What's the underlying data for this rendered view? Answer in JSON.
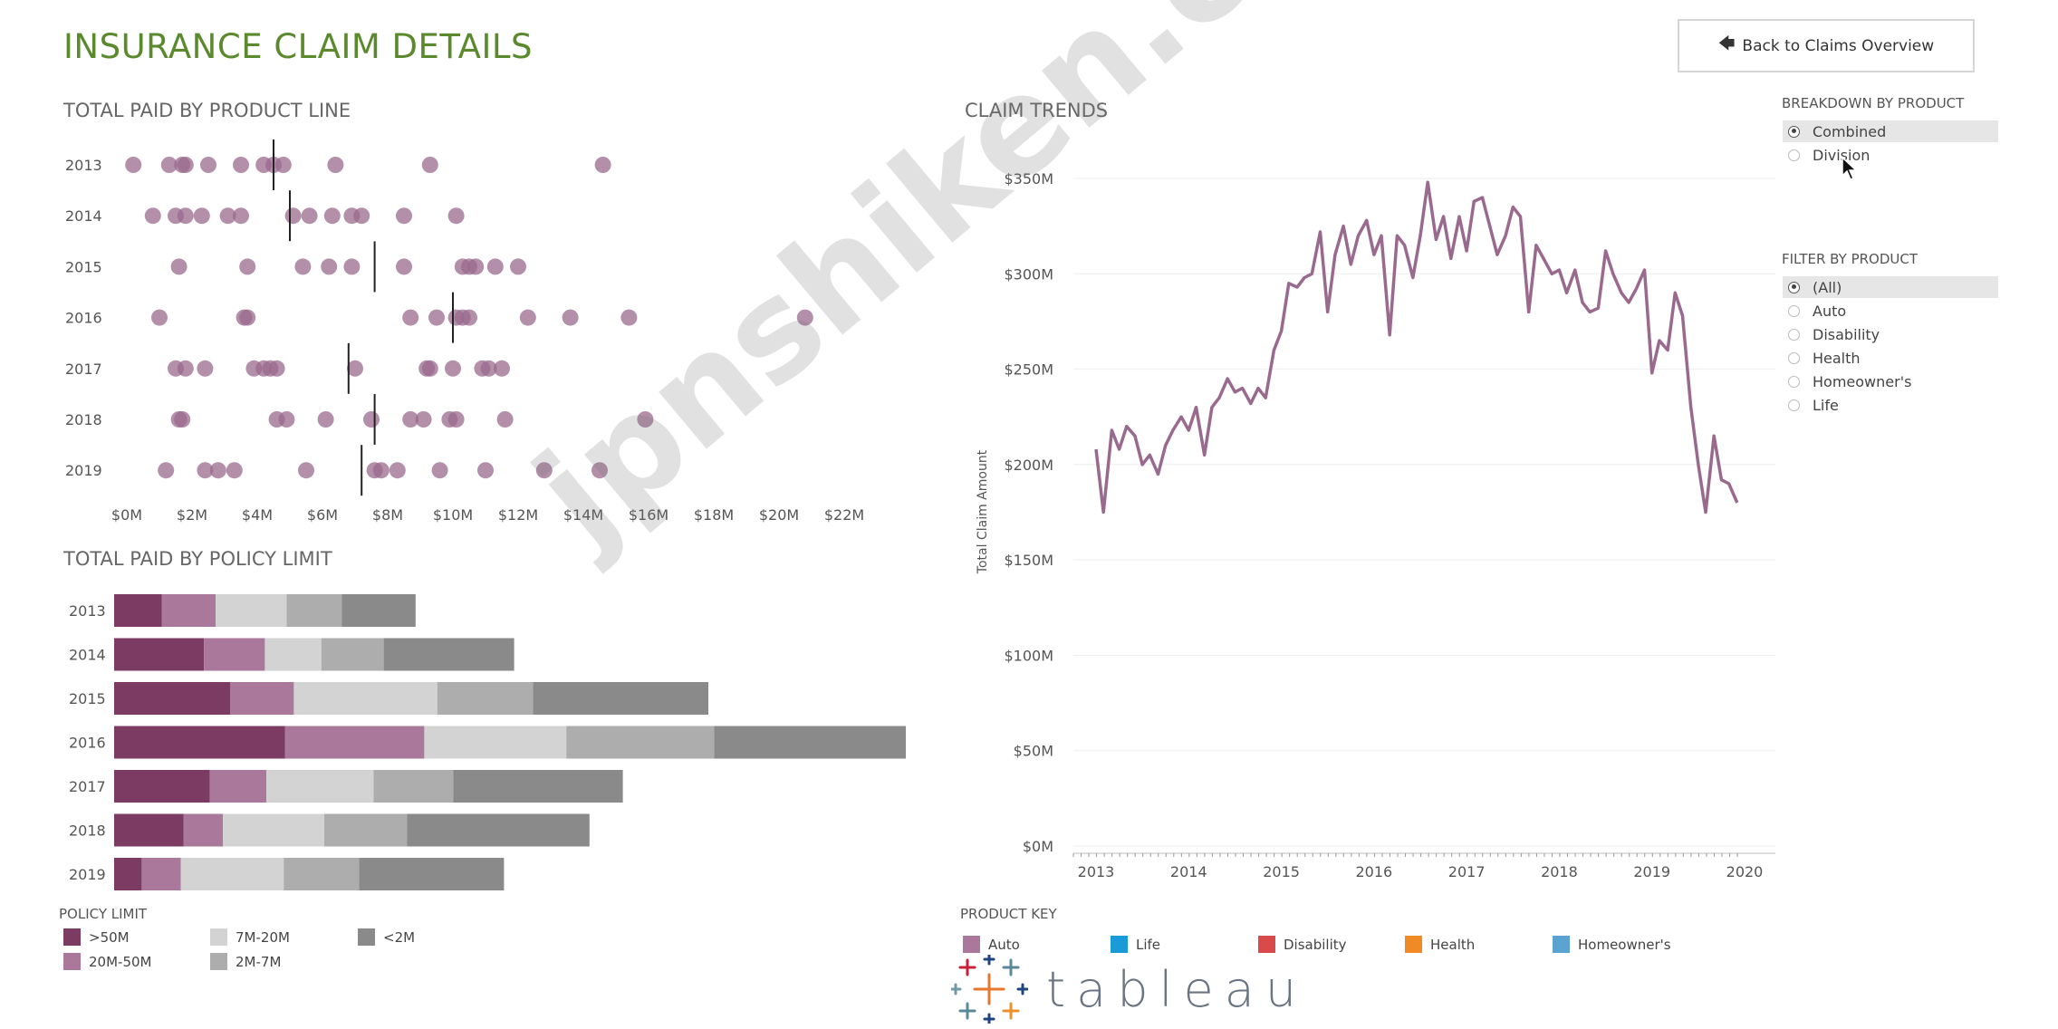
{
  "header": {
    "title": "INSURANCE CLAIM DETAILS",
    "back_button_label": "Back to Claims Overview",
    "back_icon": "arrow-left-icon"
  },
  "product_line_chart": {
    "title": "TOTAL PAID BY PRODUCT LINE",
    "chart_data": {
      "type": "scatter",
      "title": "TOTAL PAID BY PRODUCT LINE",
      "categories": [
        "2013",
        "2014",
        "2015",
        "2016",
        "2017",
        "2018",
        "2019"
      ],
      "x_ticks": [
        "$0M",
        "$2M",
        "$4M",
        "$6M",
        "$8M",
        "$10M",
        "$12M",
        "$14M",
        "$16M",
        "$18M",
        "$20M",
        "$22M"
      ],
      "xlim": [
        0,
        22
      ],
      "point_color": "#9a6a8e",
      "points_by_year": [
        [
          0.2,
          1.3,
          1.7,
          1.8,
          2.5,
          3.5,
          4.2,
          4.5,
          4.8,
          6.4,
          9.3,
          14.6
        ],
        [
          0.8,
          1.5,
          1.8,
          2.3,
          3.1,
          3.5,
          5.1,
          5.6,
          6.3,
          6.9,
          7.2,
          8.5,
          10.1
        ],
        [
          1.6,
          3.7,
          5.4,
          6.2,
          6.9,
          8.5,
          10.3,
          10.5,
          10.7,
          11.3,
          12.0
        ],
        [
          1.0,
          3.6,
          3.7,
          8.7,
          9.5,
          10.1,
          10.3,
          10.5,
          12.3,
          13.6,
          15.4,
          20.8
        ],
        [
          1.5,
          1.8,
          2.4,
          3.9,
          4.2,
          4.4,
          4.6,
          7.0,
          9.2,
          9.3,
          10.0,
          10.9,
          11.1,
          11.5
        ],
        [
          1.6,
          1.7,
          4.6,
          4.9,
          6.1,
          7.5,
          8.7,
          9.1,
          9.9,
          10.1,
          11.6,
          15.9
        ],
        [
          1.2,
          2.4,
          2.8,
          3.3,
          5.5,
          7.6,
          7.8,
          8.3,
          9.6,
          11.0,
          12.8,
          14.5
        ]
      ],
      "reference_lines": [
        4.5,
        5.0,
        7.6,
        10.0,
        6.8,
        7.6,
        7.2
      ]
    }
  },
  "policy_limit_chart": {
    "title": "TOTAL PAID BY POLICY LIMIT",
    "chart_data": {
      "type": "bar",
      "title": "TOTAL PAID BY POLICY LIMIT",
      "orientation": "horizontal",
      "stacked": true,
      "categories": [
        "2013",
        "2014",
        "2015",
        "2016",
        "2017",
        "2018",
        "2019"
      ],
      "series": [
        {
          "name": ">50M",
          "color": "#7b3b63",
          "values": [
            33,
            62,
            80,
            118,
            66,
            48,
            19
          ]
        },
        {
          "name": "20M-50M",
          "color": "#a9789a",
          "values": [
            37,
            42,
            44,
            96,
            39,
            27,
            27
          ]
        },
        {
          "name": "7M-20M",
          "color": "#d3d3d3",
          "values": [
            49,
            39,
            99,
            98,
            74,
            70,
            71
          ]
        },
        {
          "name": "2M-7M",
          "color": "#adadad",
          "values": [
            38,
            43,
            66,
            102,
            55,
            57,
            52
          ]
        },
        {
          "name": "<2M",
          "color": "#8a8a8a",
          "values": [
            51,
            90,
            121,
            135,
            117,
            126,
            100
          ]
        }
      ]
    },
    "legend_title": "POLICY LIMIT",
    "legend": [
      {
        "label": ">50M",
        "color": "#7b3b63"
      },
      {
        "label": "7M-20M",
        "color": "#d3d3d3"
      },
      {
        "label": "<2M",
        "color": "#8a8a8a"
      },
      {
        "label": "20M-50M",
        "color": "#a9789a"
      },
      {
        "label": "2M-7M",
        "color": "#adadad"
      }
    ]
  },
  "claim_trends_chart": {
    "title": "CLAIM TRENDS",
    "chart_data": {
      "type": "line",
      "title": "CLAIM TRENDS",
      "ylabel": "Total Claim Amount",
      "y_ticks": [
        "$0M",
        "$50M",
        "$100M",
        "$150M",
        "$200M",
        "$250M",
        "$300M",
        "$350M"
      ],
      "ylim": [
        0,
        350
      ],
      "x_ticks": [
        "2013",
        "2014",
        "2015",
        "2016",
        "2017",
        "2018",
        "2019",
        "2020"
      ],
      "xlim": [
        2013,
        2020
      ],
      "line_color": "#9a6a8e",
      "series": [
        {
          "name": "Combined",
          "x": [
            2013.0,
            2013.08,
            2013.17,
            2013.25,
            2013.33,
            2013.42,
            2013.5,
            2013.58,
            2013.67,
            2013.75,
            2013.83,
            2013.92,
            2014.0,
            2014.08,
            2014.17,
            2014.25,
            2014.33,
            2014.42,
            2014.5,
            2014.58,
            2014.67,
            2014.75,
            2014.83,
            2014.92,
            2015.0,
            2015.08,
            2015.17,
            2015.25,
            2015.33,
            2015.42,
            2015.5,
            2015.58,
            2015.67,
            2015.75,
            2015.83,
            2015.92,
            2016.0,
            2016.08,
            2016.17,
            2016.25,
            2016.33,
            2016.42,
            2016.5,
            2016.58,
            2016.67,
            2016.75,
            2016.83,
            2016.92,
            2017.0,
            2017.08,
            2017.17,
            2017.25,
            2017.33,
            2017.42,
            2017.5,
            2017.58,
            2017.67,
            2017.75,
            2017.83,
            2017.92,
            2018.0,
            2018.08,
            2018.17,
            2018.25,
            2018.33,
            2018.42,
            2018.5,
            2018.58,
            2018.67,
            2018.75,
            2018.83,
            2018.92,
            2019.0,
            2019.08,
            2019.17,
            2019.25,
            2019.33,
            2019.42,
            2019.5,
            2019.58,
            2019.67,
            2019.75,
            2019.83,
            2019.92
          ],
          "values": [
            208,
            175,
            218,
            208,
            220,
            215,
            200,
            205,
            195,
            210,
            218,
            225,
            218,
            230,
            205,
            230,
            235,
            245,
            238,
            240,
            232,
            240,
            235,
            260,
            270,
            295,
            293,
            298,
            300,
            322,
            280,
            310,
            325,
            305,
            320,
            328,
            310,
            320,
            268,
            320,
            315,
            298,
            320,
            348,
            318,
            330,
            308,
            330,
            312,
            338,
            340,
            325,
            310,
            320,
            335,
            330,
            280,
            315,
            308,
            300,
            302,
            290,
            302,
            285,
            280,
            282,
            312,
            300,
            290,
            285,
            292,
            302,
            248,
            265,
            260,
            290,
            278,
            230,
            200,
            175,
            215,
            192,
            190,
            180
          ]
        }
      ]
    },
    "breakdown_title": "BREAKDOWN BY PRODUCT",
    "breakdown_options": [
      {
        "label": "Combined",
        "selected": true
      },
      {
        "label": "Division",
        "selected": false
      }
    ],
    "filter_title": "FILTER BY PRODUCT",
    "filter_options": [
      {
        "label": "(All)",
        "selected": true
      },
      {
        "label": "Auto",
        "selected": false
      },
      {
        "label": "Disability",
        "selected": false
      },
      {
        "label": "Health",
        "selected": false
      },
      {
        "label": "Homeowner's",
        "selected": false
      },
      {
        "label": "Life",
        "selected": false
      }
    ],
    "product_key_title": "PRODUCT KEY",
    "product_key": [
      {
        "label": "Auto",
        "color": "#a9789a"
      },
      {
        "label": "Life",
        "color": "#1a9bd7"
      },
      {
        "label": "Disability",
        "color": "#d94b4b"
      },
      {
        "label": "Health",
        "color": "#f08a24"
      },
      {
        "label": "Homeowner's",
        "color": "#5ba3d0"
      }
    ]
  },
  "watermark": "jpnshiken.com",
  "logo": {
    "wordmark": "tableau",
    "icon": "tableau-plus-logo-icon"
  },
  "cursor_icon": "mouse-pointer-icon"
}
